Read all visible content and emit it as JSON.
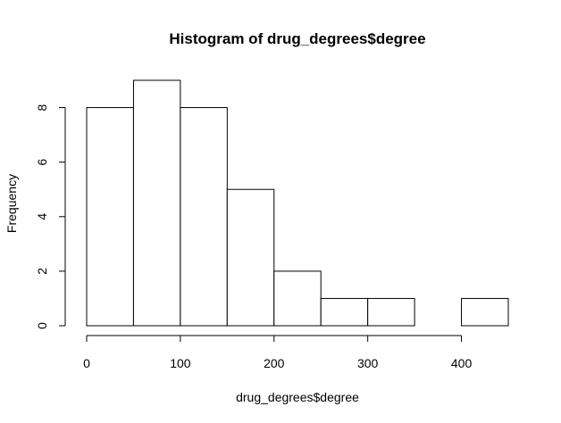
{
  "chart_data": {
    "type": "bar",
    "title": "Histogram of drug_degrees$degree",
    "xlabel": "drug_degrees$degree",
    "ylabel": "Frequency",
    "bins": [
      {
        "start": 0,
        "end": 50,
        "count": 8
      },
      {
        "start": 50,
        "end": 100,
        "count": 9
      },
      {
        "start": 100,
        "end": 150,
        "count": 8
      },
      {
        "start": 150,
        "end": 200,
        "count": 5
      },
      {
        "start": 200,
        "end": 250,
        "count": 2
      },
      {
        "start": 250,
        "end": 300,
        "count": 1
      },
      {
        "start": 300,
        "end": 350,
        "count": 1
      },
      {
        "start": 350,
        "end": 400,
        "count": 0
      },
      {
        "start": 400,
        "end": 450,
        "count": 1
      }
    ],
    "xlim": [
      0,
      450
    ],
    "ylim": [
      0,
      9
    ],
    "x_ticks": [
      0,
      100,
      200,
      300,
      400
    ],
    "y_ticks": [
      0,
      2,
      4,
      6,
      8
    ],
    "x_tick_labels": [
      "0",
      "100",
      "200",
      "300",
      "400"
    ],
    "y_tick_labels": [
      "0",
      "2",
      "4",
      "6",
      "8"
    ],
    "grid": false,
    "legend": "none"
  }
}
